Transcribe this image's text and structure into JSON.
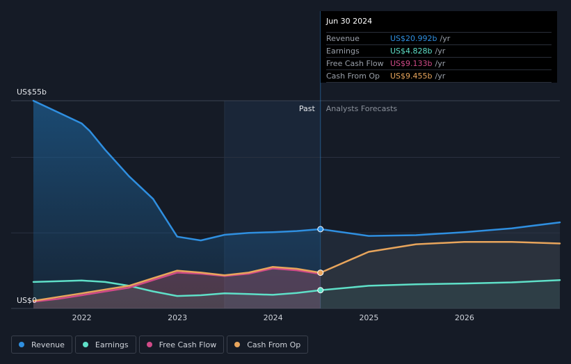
{
  "chart_data": {
    "type": "line",
    "y_max_label": "US$55b",
    "y_min_label": "US$0",
    "ylim": [
      0,
      55
    ],
    "x_ticks": [
      "2022",
      "2023",
      "2024",
      "2025",
      "2026"
    ],
    "past_label": "Past",
    "forecast_label": "Analysts Forecasts",
    "divider_date": "2024-06-30",
    "series": [
      {
        "name": "Revenue",
        "color": "#2f8fe0",
        "points": [
          [
            "2021-06-30",
            55
          ],
          [
            "2021-09-30",
            52
          ],
          [
            "2021-12-31",
            49
          ],
          [
            "2022-01-31",
            47
          ],
          [
            "2022-03-31",
            42
          ],
          [
            "2022-06-30",
            35
          ],
          [
            "2022-09-30",
            29
          ],
          [
            "2022-12-31",
            19
          ],
          [
            "2023-03-31",
            18
          ],
          [
            "2023-06-30",
            19.5
          ],
          [
            "2023-09-30",
            20
          ],
          [
            "2023-12-31",
            20.2
          ],
          [
            "2024-03-31",
            20.5
          ],
          [
            "2024-06-30",
            20.992
          ],
          [
            "2024-12-31",
            19.2
          ],
          [
            "2025-06-30",
            19.4
          ],
          [
            "2025-12-31",
            20.2
          ],
          [
            "2026-06-30",
            21.2
          ],
          [
            "2026-12-31",
            22.8
          ]
        ]
      },
      {
        "name": "Earnings",
        "color": "#5fe0c8",
        "points": [
          [
            "2021-06-30",
            7
          ],
          [
            "2021-09-30",
            7.2
          ],
          [
            "2021-12-31",
            7.4
          ],
          [
            "2022-03-31",
            7
          ],
          [
            "2022-06-30",
            6
          ],
          [
            "2022-09-30",
            4.5
          ],
          [
            "2022-12-31",
            3.3
          ],
          [
            "2023-03-31",
            3.5
          ],
          [
            "2023-06-30",
            4
          ],
          [
            "2023-09-30",
            3.8
          ],
          [
            "2023-12-31",
            3.6
          ],
          [
            "2024-03-31",
            4.1
          ],
          [
            "2024-06-30",
            4.828
          ],
          [
            "2024-12-31",
            6
          ],
          [
            "2025-06-30",
            6.4
          ],
          [
            "2025-12-31",
            6.6
          ],
          [
            "2026-06-30",
            6.9
          ],
          [
            "2026-12-31",
            7.5
          ]
        ]
      },
      {
        "name": "Free Cash Flow",
        "color": "#d04a88",
        "points": [
          [
            "2021-06-30",
            1.8
          ],
          [
            "2021-09-30",
            2.5
          ],
          [
            "2021-12-31",
            3.5
          ],
          [
            "2022-03-31",
            4.5
          ],
          [
            "2022-06-30",
            5.5
          ],
          [
            "2022-09-30",
            7.5
          ],
          [
            "2022-12-31",
            9.5
          ],
          [
            "2023-03-31",
            9.2
          ],
          [
            "2023-06-30",
            8.6
          ],
          [
            "2023-09-30",
            9.2
          ],
          [
            "2023-12-31",
            10.6
          ],
          [
            "2024-03-31",
            10.1
          ],
          [
            "2024-06-30",
            9.133
          ]
        ]
      },
      {
        "name": "Cash From Op",
        "color": "#e8a55c",
        "points": [
          [
            "2021-06-30",
            2
          ],
          [
            "2021-09-30",
            3
          ],
          [
            "2021-12-31",
            4
          ],
          [
            "2022-03-31",
            5
          ],
          [
            "2022-06-30",
            6
          ],
          [
            "2022-09-30",
            8
          ],
          [
            "2022-12-31",
            10
          ],
          [
            "2023-03-31",
            9.5
          ],
          [
            "2023-06-30",
            8.8
          ],
          [
            "2023-09-30",
            9.5
          ],
          [
            "2023-12-31",
            11
          ],
          [
            "2024-03-31",
            10.5
          ],
          [
            "2024-06-30",
            9.455
          ],
          [
            "2024-12-31",
            15
          ],
          [
            "2025-06-30",
            17
          ],
          [
            "2025-12-31",
            17.6
          ],
          [
            "2026-06-30",
            17.6
          ],
          [
            "2026-12-31",
            17.2
          ]
        ]
      }
    ]
  },
  "tooltip": {
    "date": "Jun 30 2024",
    "rows": [
      {
        "name": "Revenue",
        "value": "US$20.992b",
        "unit": "/yr",
        "color": "#2f8fe0"
      },
      {
        "name": "Earnings",
        "value": "US$4.828b",
        "unit": "/yr",
        "color": "#5fe0c8"
      },
      {
        "name": "Free Cash Flow",
        "value": "US$9.133b",
        "unit": "/yr",
        "color": "#d04a88"
      },
      {
        "name": "Cash From Op",
        "value": "US$9.455b",
        "unit": "/yr",
        "color": "#e8a55c"
      }
    ]
  },
  "legend": [
    {
      "label": "Revenue",
      "color": "#2f8fe0"
    },
    {
      "label": "Earnings",
      "color": "#5fe0c8"
    },
    {
      "label": "Free Cash Flow",
      "color": "#d04a88"
    },
    {
      "label": "Cash From Op",
      "color": "#e8a55c"
    }
  ]
}
